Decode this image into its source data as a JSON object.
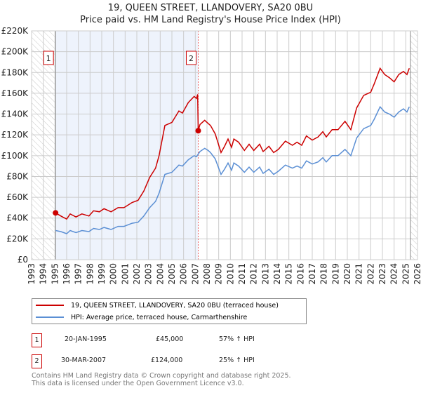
{
  "chart_data": {
    "type": "line",
    "title": "19, QUEEN STREET, LLANDOVERY, SA20 0BU",
    "subtitle": "Price paid vs. HM Land Registry's House Price Index (HPI)",
    "xlim": [
      1993,
      2026
    ],
    "ylim": [
      0,
      220000
    ],
    "yticks": [
      0,
      20000,
      40000,
      60000,
      80000,
      100000,
      120000,
      140000,
      160000,
      180000,
      200000,
      220000
    ],
    "ytick_labels": [
      "£0",
      "£20K",
      "£40K",
      "£60K",
      "£80K",
      "£100K",
      "£120K",
      "£140K",
      "£160K",
      "£180K",
      "£200K",
      "£220K"
    ],
    "xtick_labels": [
      "1993",
      "1994",
      "1995",
      "1996",
      "1997",
      "1998",
      "1999",
      "2000",
      "2001",
      "2002",
      "2003",
      "2004",
      "2005",
      "2006",
      "2007",
      "2008",
      "2009",
      "2010",
      "2011",
      "2012",
      "2013",
      "2014",
      "2015",
      "2016",
      "2017",
      "2018",
      "2019",
      "2020",
      "2021",
      "2022",
      "2023",
      "2024",
      "2025",
      "2026"
    ],
    "grid": true,
    "shaded_ownership": [
      1995.05,
      2007.25
    ],
    "hatched_before": 1995.05,
    "hatched_after": 2025.4,
    "series": [
      {
        "name": "19, QUEEN STREET, LLANDOVERY, SA20 0BU (terraced house)",
        "color": "#cc0000",
        "x": [
          1995.05,
          1995.5,
          1996,
          1996.3,
          1996.8,
          1997.3,
          1997.9,
          1998.3,
          1998.8,
          1999.2,
          1999.8,
          2000.4,
          2000.9,
          2001.6,
          2002.1,
          2002.6,
          2003.1,
          2003.6,
          2003.9,
          2004.4,
          2005,
          2005.6,
          2005.9,
          2006.4,
          2006.9,
          2007.1,
          2007.2,
          2007.25,
          2007.4,
          2007.8,
          2008.1,
          2008.3,
          2008.7,
          2009.2,
          2009.5,
          2009.8,
          2010.1,
          2010.3,
          2010.7,
          2011.2,
          2011.6,
          2012,
          2012.5,
          2012.8,
          2013.3,
          2013.7,
          2014.1,
          2014.7,
          2015.3,
          2015.7,
          2016.1,
          2016.5,
          2017,
          2017.5,
          2017.9,
          2018.2,
          2018.7,
          2019.2,
          2019.8,
          2020.3,
          2020.8,
          2021.4,
          2022,
          2022.3,
          2022.8,
          2023.2,
          2023.6,
          2024,
          2024.4,
          2024.8,
          2025.1,
          2025.3
        ],
        "y": [
          45000,
          42000,
          39000,
          44000,
          41000,
          44000,
          42000,
          47000,
          46000,
          49000,
          46000,
          50000,
          50000,
          55000,
          57000,
          66000,
          79000,
          88000,
          100000,
          129000,
          132000,
          143000,
          141000,
          151000,
          157000,
          155000,
          159000,
          124000,
          130000,
          134000,
          131000,
          129000,
          121000,
          103000,
          109000,
          116000,
          108000,
          116000,
          113000,
          105000,
          111000,
          105000,
          111000,
          104000,
          109000,
          103000,
          106000,
          114000,
          110000,
          113000,
          110000,
          119000,
          115000,
          118000,
          123000,
          118000,
          125000,
          125000,
          133000,
          125000,
          146000,
          158000,
          161000,
          169000,
          184000,
          178000,
          175000,
          171000,
          178000,
          181000,
          178000,
          184000
        ]
      },
      {
        "name": "HPI: Average price, terraced house, Carmarthenshire",
        "color": "#5b8fd4",
        "x": [
          1995.05,
          1995.5,
          1996,
          1996.3,
          1996.8,
          1997.3,
          1997.9,
          1998.3,
          1998.8,
          1999.2,
          1999.8,
          2000.4,
          2000.9,
          2001.6,
          2002.1,
          2002.6,
          2003.1,
          2003.6,
          2003.9,
          2004.4,
          2005,
          2005.6,
          2005.9,
          2006.4,
          2006.9,
          2007.1,
          2007.4,
          2007.8,
          2008.1,
          2008.3,
          2008.7,
          2009.2,
          2009.5,
          2009.8,
          2010.1,
          2010.3,
          2010.7,
          2011.2,
          2011.6,
          2012,
          2012.5,
          2012.8,
          2013.3,
          2013.7,
          2014.1,
          2014.7,
          2015.3,
          2015.7,
          2016.1,
          2016.5,
          2017,
          2017.5,
          2017.9,
          2018.2,
          2018.7,
          2019.2,
          2019.8,
          2020.3,
          2020.8,
          2021.4,
          2022,
          2022.3,
          2022.8,
          2023.2,
          2023.6,
          2024,
          2024.4,
          2024.8,
          2025.1,
          2025.3
        ],
        "y": [
          28000,
          27000,
          25000,
          28000,
          26000,
          28000,
          27000,
          30000,
          29000,
          31000,
          29000,
          32000,
          32000,
          35000,
          36000,
          42000,
          50000,
          56000,
          64000,
          82000,
          84000,
          91000,
          90000,
          96000,
          100000,
          99000,
          104000,
          107000,
          105000,
          103000,
          97000,
          82000,
          87000,
          93000,
          86000,
          93000,
          90000,
          84000,
          89000,
          84000,
          89000,
          83000,
          87000,
          82000,
          85000,
          91000,
          88000,
          90000,
          88000,
          95000,
          92000,
          94000,
          98000,
          94000,
          100000,
          100000,
          106000,
          100000,
          117000,
          126000,
          129000,
          135000,
          147000,
          142000,
          140000,
          137000,
          142000,
          145000,
          142000,
          147000
        ]
      }
    ],
    "sales": [
      {
        "label": "1",
        "x": 1995.05,
        "y": 45000
      },
      {
        "label": "2",
        "x": 2007.25,
        "y": 124000
      }
    ]
  },
  "legend": {
    "property": "19, QUEEN STREET, LLANDOVERY, SA20 0BU (terraced house)",
    "hpi": "HPI: Average price, terraced house, Carmarthenshire"
  },
  "transactions": [
    {
      "num": "1",
      "date": "20-JAN-1995",
      "price": "£45,000",
      "hpi": "57% ↑ HPI"
    },
    {
      "num": "2",
      "date": "30-MAR-2007",
      "price": "£124,000",
      "hpi": "25% ↑ HPI"
    }
  ],
  "footer": {
    "line1": "Contains HM Land Registry data © Crown copyright and database right 2025.",
    "line2": "This data is licensed under the Open Government Licence v3.0."
  }
}
